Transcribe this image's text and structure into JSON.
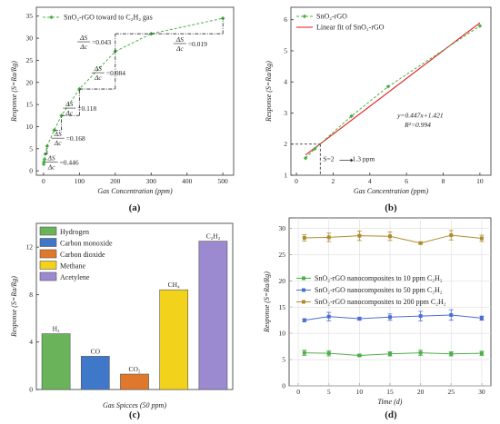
{
  "colors": {
    "green": "#4daf4a",
    "red": "#e31a1c",
    "blue": "#4a6fd1",
    "orange": "#b08a2e",
    "bar_hydrogen": "#6bb35a",
    "bar_co": "#3f77c9",
    "bar_co2": "#e0782c",
    "bar_methane": "#f2d21b",
    "bar_acetylene": "#9b8ad0"
  },
  "chart_data": [
    {
      "panel": "(a)",
      "type": "line",
      "xlabel": "Gas Concentration (ppm)",
      "ylabel": "Response (S=Ra/Rg)",
      "xlim": [
        -20,
        530
      ],
      "ylim": [
        -1,
        37
      ],
      "xticks": [
        0,
        100,
        200,
        300,
        400,
        500
      ],
      "yticks": [
        0,
        5,
        10,
        15,
        20,
        25,
        30,
        35
      ],
      "series": [
        {
          "name": "SnO₂-rGO toward to C₂H₂ gas",
          "x": [
            0.5,
            1,
            3,
            5,
            10,
            30,
            50,
            100,
            200,
            300,
            500
          ],
          "y": [
            1.5,
            2.0,
            2.6,
            3.8,
            5.6,
            9.2,
            12.5,
            18.5,
            27.0,
            31.0,
            34.5
          ]
        }
      ],
      "annotations": [
        "ΔS/Δc =0.446",
        "ΔS/Δc =0.168",
        "ΔS/Δc =0.118",
        "ΔS/Δc =0.084",
        "ΔS/Δc =0.043",
        "ΔS/Δc =0.019"
      ],
      "grid": false,
      "legend": "top-left"
    },
    {
      "panel": "(b)",
      "type": "line",
      "xlabel": "Gas Concentration (ppm)",
      "ylabel": "Response (S=Ra/Rg)",
      "xlim": [
        -0.3,
        10.6
      ],
      "ylim": [
        1,
        6.4
      ],
      "xticks": [
        0,
        2,
        4,
        6,
        8,
        10
      ],
      "yticks": [
        1,
        2,
        3,
        4,
        5,
        6
      ],
      "series": [
        {
          "name": "SnO₂-rGO",
          "x": [
            0.5,
            1,
            3,
            5,
            10
          ],
          "y": [
            1.55,
            1.85,
            2.9,
            3.85,
            5.8
          ]
        },
        {
          "name": "Linear fit of SnO₂-rGO",
          "x": [
            0.5,
            10
          ],
          "y": [
            1.65,
            5.9
          ]
        }
      ],
      "annotations": [
        "y=0.447x+1.421",
        "R²=0.994",
        "S=2",
        "1.3 ppm"
      ],
      "grid": false,
      "legend": "top-left"
    },
    {
      "panel": "(c)",
      "type": "bar",
      "xlabel": "Gas Spicces (50 ppm)",
      "ylabel": "Response (S=Ra/Rg)",
      "ylim": [
        0,
        14
      ],
      "yticks": [
        0,
        4,
        8,
        12
      ],
      "categories": [
        "H₂",
        "CO",
        "CO₂",
        "CH₄",
        "C₂H₂"
      ],
      "legend_names": [
        "Hydrogen",
        "Carbon monoxide",
        "Carbon dioxide",
        "Methane",
        "Acetylene"
      ],
      "values": [
        4.7,
        2.8,
        1.3,
        8.4,
        12.5
      ],
      "legend": "top-left"
    },
    {
      "panel": "(d)",
      "type": "line",
      "xlabel": "Time (d)",
      "ylabel": "Response (S=Ra/Rg)",
      "xlim": [
        -1.5,
        31.5
      ],
      "ylim": [
        0,
        32
      ],
      "xticks": [
        0,
        5,
        10,
        15,
        20,
        25,
        30
      ],
      "yticks": [
        0,
        5,
        10,
        15,
        20,
        25,
        30
      ],
      "x": [
        1,
        5,
        10,
        15,
        20,
        25,
        30
      ],
      "series": [
        {
          "name": "SnO₂-rGO nanocomposites to 10 ppm C₂H₂",
          "values": [
            6.3,
            6.2,
            5.8,
            6.1,
            6.3,
            6.1,
            6.2
          ],
          "err": [
            0.5,
            0.5,
            0.2,
            0.4,
            0.5,
            0.4,
            0.4
          ]
        },
        {
          "name": "SnO₂-rGO nanocomposites to 50 ppm C₂H₂",
          "values": [
            12.5,
            13.2,
            12.8,
            13.1,
            13.3,
            13.5,
            12.9
          ],
          "err": [
            0.3,
            0.8,
            0.3,
            0.6,
            0.9,
            1.0,
            0.4
          ]
        },
        {
          "name": "SnO₂-rGO nanocomposites to 200 ppm C₂H₂",
          "values": [
            28.2,
            28.3,
            28.6,
            28.5,
            27.2,
            28.7,
            28.1
          ],
          "err": [
            0.6,
            0.8,
            0.9,
            0.8,
            0.2,
            0.9,
            0.6
          ]
        }
      ],
      "grid": true,
      "legend": "center"
    }
  ]
}
